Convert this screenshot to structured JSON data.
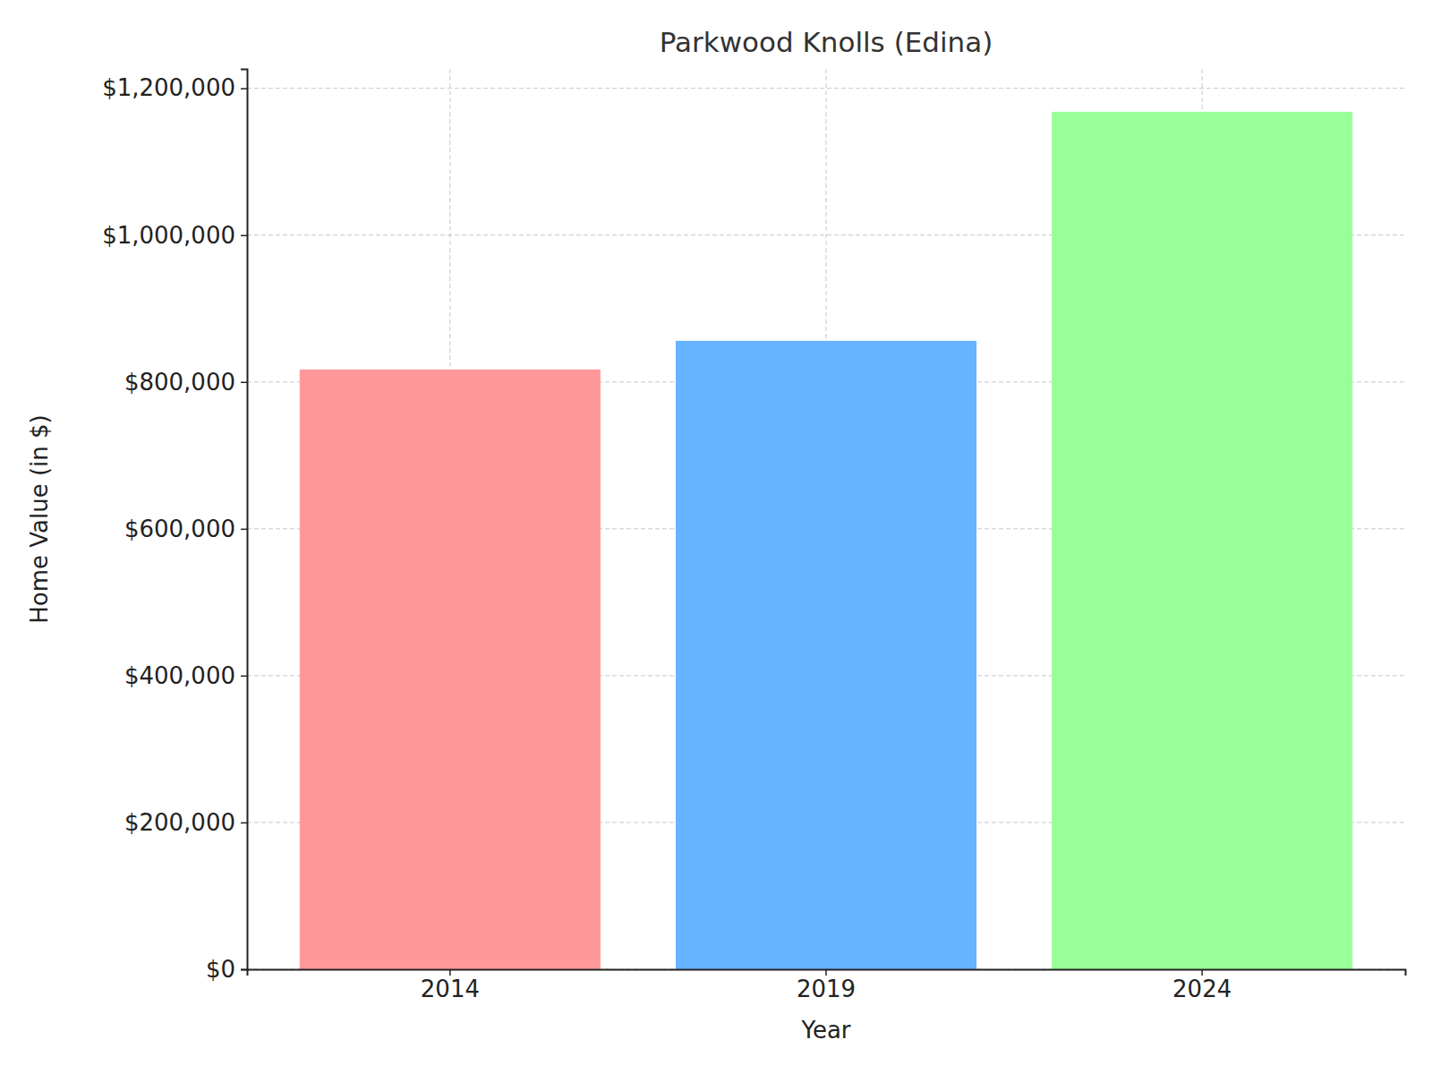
{
  "chart_data": {
    "type": "bar",
    "title": "Parkwood Knolls (Edina)",
    "x_label": "Year",
    "y_label": "Home Value (in $)",
    "categories": [
      "2014",
      "2019",
      "2024"
    ],
    "values": [
      817000,
      856000,
      1168000
    ],
    "colors": [
      "#ff9999",
      "#66b3ff",
      "#99ff99"
    ],
    "ylim": [
      0,
      1226400
    ],
    "yticks": [
      {
        "value": 0,
        "label": "$0"
      },
      {
        "value": 200000,
        "label": "$200,000"
      },
      {
        "value": 400000,
        "label": "$400,000"
      },
      {
        "value": 600000,
        "label": "$600,000"
      },
      {
        "value": 800000,
        "label": "$800,000"
      },
      {
        "value": 1000000,
        "label": "$1,000,000"
      },
      {
        "value": 1200000,
        "label": "$1,200,000"
      }
    ],
    "grid": true
  }
}
